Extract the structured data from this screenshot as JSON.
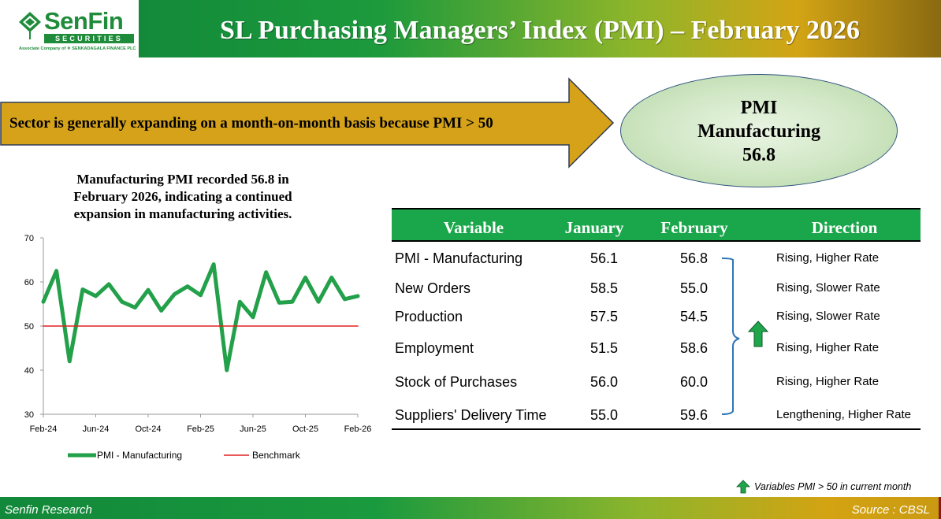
{
  "logo": {
    "brand_a": "Sen",
    "brand_b": "Fin",
    "sub": "SECURITIES",
    "assoc": "Associate Company of ❖ SENKADAGALA FINANCE PLC",
    "icon": "senfin-leaf-icon"
  },
  "header": {
    "title": "SL Purchasing Managers’ Index (PMI) – February 2026"
  },
  "banner": {
    "text": "Sector is generally expanding on a month-on-month basis because PMI > 50"
  },
  "highlight": {
    "line1": "PMI",
    "line2": "Manufacturing",
    "line3": "56.8"
  },
  "chart_caption": {
    "line1": "Manufacturing  PMI recorded 56.8 in",
    "line2": "February  2026, indicating  a continued",
    "line3": "expansion  in manufacturing  activities."
  },
  "chart_data": {
    "type": "line",
    "title": "",
    "xlabel": "",
    "ylabel": "",
    "ylim": [
      30,
      70
    ],
    "yticks": [
      30,
      40,
      50,
      60,
      70
    ],
    "x_ticks": [
      "Feb-24",
      "Jun-24",
      "Oct-24",
      "Feb-25",
      "Jun-25",
      "Oct-25",
      "Feb-26"
    ],
    "x": [
      "Feb-24",
      "Mar-24",
      "Apr-24",
      "May-24",
      "Jun-24",
      "Jul-24",
      "Aug-24",
      "Sep-24",
      "Oct-24",
      "Nov-24",
      "Dec-24",
      "Jan-25",
      "Feb-25",
      "Mar-25",
      "Apr-25",
      "May-25",
      "Jun-25",
      "Jul-25",
      "Aug-25",
      "Sep-25",
      "Oct-25",
      "Nov-25",
      "Dec-25",
      "Jan-26",
      "Feb-26"
    ],
    "series": [
      {
        "name": "PMI - Manufacturing",
        "color": "#23a04a",
        "values": [
          55.5,
          62.5,
          42.0,
          58.3,
          56.8,
          59.5,
          55.5,
          54.2,
          58.2,
          53.5,
          57.2,
          59.0,
          57.0,
          64.0,
          40.0,
          55.5,
          52.0,
          62.2,
          55.3,
          55.5,
          61.0,
          55.5,
          61.0,
          56.1,
          56.8
        ]
      },
      {
        "name": "Benchmark",
        "color": "#e02020",
        "values": [
          50,
          50,
          50,
          50,
          50,
          50,
          50,
          50,
          50,
          50,
          50,
          50,
          50,
          50,
          50,
          50,
          50,
          50,
          50,
          50,
          50,
          50,
          50,
          50,
          50
        ]
      }
    ],
    "legend": [
      "PMI - Manufacturing",
      "Benchmark"
    ],
    "legend_position": "bottom",
    "grid": false
  },
  "table": {
    "headers": [
      "Variable",
      "January",
      "February",
      "Direction"
    ],
    "rows": [
      {
        "variable": "PMI - Manufacturing",
        "january": "56.1",
        "february": "56.8",
        "direction": "Rising, Higher Rate"
      },
      {
        "variable": "New Orders",
        "january": "58.5",
        "february": "55.0",
        "direction": "Rising, Slower Rate"
      },
      {
        "variable": "Production",
        "january": "57.5",
        "february": "54.5",
        "direction": "Rising, Slower Rate"
      },
      {
        "variable": "Employment",
        "january": "51.5",
        "february": "58.6",
        "direction": "Rising, Higher Rate"
      },
      {
        "variable": "Stock of Purchases",
        "january": "56.0",
        "february": "60.0",
        "direction": "Rising, Higher Rate"
      },
      {
        "variable": "Suppliers' Delivery Time",
        "january": "55.0",
        "february": "59.6",
        "direction": "Lengthening, Higher Rate"
      }
    ],
    "group_icon": "green-up-arrow-icon"
  },
  "note": {
    "text": "Variables PMI > 50 in current month",
    "icon": "green-up-arrow-icon"
  },
  "footer": {
    "left": "Senfin Research",
    "right": "Source : CBSL"
  },
  "colors": {
    "green": "#1aa64a",
    "gold": "#d4a312",
    "benchmark": "#e02020",
    "pmi_line": "#23a04a"
  }
}
